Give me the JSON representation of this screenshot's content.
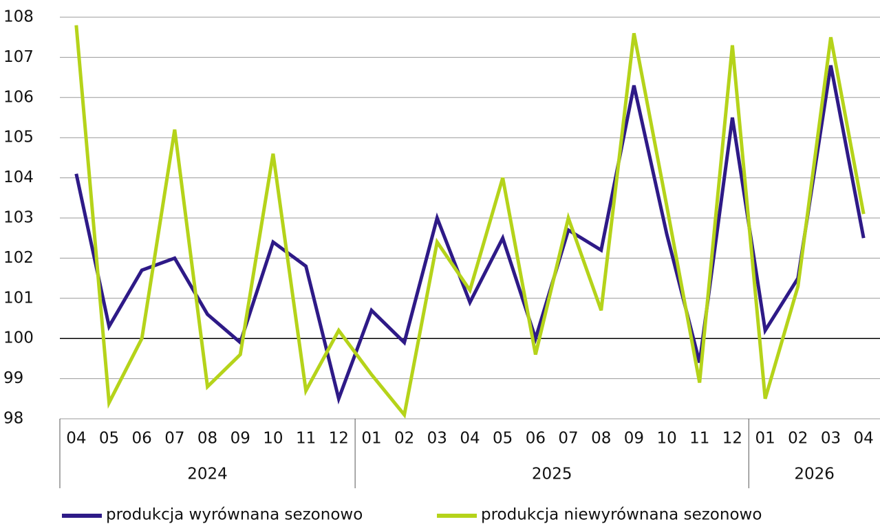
{
  "chart_data": {
    "type": "line",
    "category_groups": [
      {
        "name": "2024",
        "categories": [
          "04",
          "05",
          "06",
          "07",
          "08",
          "09",
          "10",
          "11",
          "12"
        ]
      },
      {
        "name": "2025",
        "categories": [
          "01",
          "02",
          "03",
          "04",
          "05",
          "06",
          "07",
          "08",
          "09",
          "10",
          "11",
          "12"
        ]
      },
      {
        "name": "2026",
        "categories": [
          "01",
          "02",
          "03",
          "04"
        ]
      }
    ],
    "series": [
      {
        "name": "produkcja wyrównana sezonowo",
        "color": "#2e1a87",
        "values": [
          104.1,
          100.3,
          101.7,
          102.0,
          100.6,
          99.9,
          102.4,
          101.8,
          98.5,
          100.7,
          99.9,
          103.0,
          100.9,
          102.5,
          100.0,
          102.7,
          102.2,
          106.3,
          102.6,
          99.4,
          105.5,
          100.2,
          101.5,
          106.8,
          102.5
        ]
      },
      {
        "name": "produkcja niewyrównana sezonowo",
        "color": "#b5d31a",
        "values": [
          107.8,
          98.4,
          100.0,
          105.2,
          98.8,
          99.6,
          104.6,
          98.7,
          100.2,
          99.1,
          98.1,
          102.4,
          101.2,
          104.0,
          99.6,
          103.0,
          100.7,
          107.6,
          103.3,
          98.9,
          107.3,
          98.5,
          101.3,
          107.5,
          103.1
        ]
      }
    ],
    "ylim": [
      98,
      108
    ],
    "yticks": [
      98,
      99,
      100,
      101,
      102,
      103,
      104,
      105,
      106,
      107,
      108
    ],
    "grid": true,
    "legend": "bottom"
  }
}
